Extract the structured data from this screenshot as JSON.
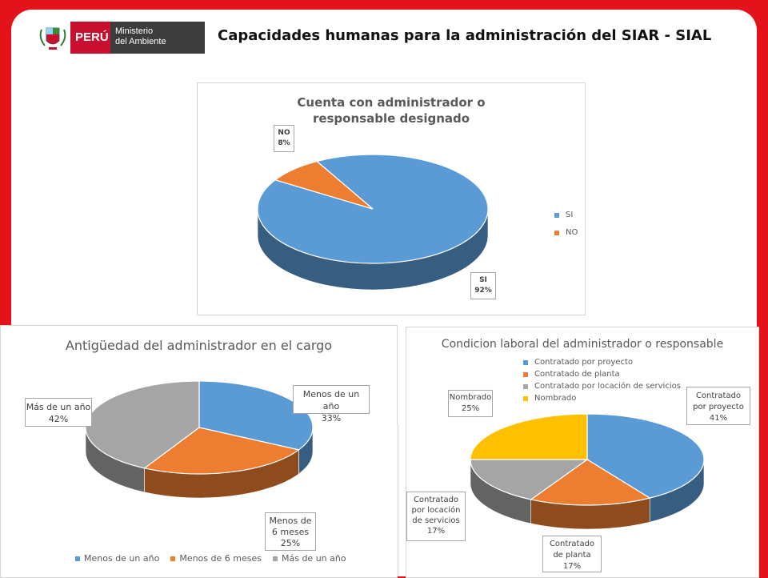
{
  "header": {
    "country": "PERÚ",
    "ministry_line1": "Ministerio",
    "ministry_line2": "del Ambiente",
    "title": "Capacidades humanas para la administración del SIAR - SIAL"
  },
  "colors": {
    "frame_red": "#e4121b",
    "blue": "#5b9bd5",
    "orange": "#ed7d31",
    "gray": "#a5a5a5",
    "yellow": "#ffc000"
  },
  "chart_data": [
    {
      "type": "pie",
      "title": "Cuenta con administrador o responsable designado",
      "categories": [
        "SI",
        "NO"
      ],
      "values": [
        92,
        8
      ],
      "labels": [
        {
          "name": "SI",
          "pct": "92%"
        },
        {
          "name": "NO",
          "pct": "8%"
        }
      ],
      "legend": [
        "SI",
        "NO"
      ],
      "legend_position": "right"
    },
    {
      "type": "pie",
      "title": "Antigüedad del administrador en el cargo",
      "categories": [
        "Menos de un año",
        "Menos de 6 meses",
        "Más de un año"
      ],
      "values": [
        33,
        25,
        42
      ],
      "labels": [
        {
          "name": "Menos de un año",
          "pct": "33%"
        },
        {
          "name": "Menos de 6 meses",
          "pct": "25%"
        },
        {
          "name": "Más de un año",
          "pct": "42%"
        }
      ],
      "legend": [
        "Menos de un año",
        "Menos de 6 meses",
        "Más de un año"
      ],
      "legend_position": "bottom"
    },
    {
      "type": "pie",
      "title": "Condicion laboral del administrador o responsable",
      "categories": [
        "Contratado por proyecto",
        "Contratado de planta",
        "Contratado por locación de servicios",
        "Nombrado"
      ],
      "values": [
        41,
        17,
        17,
        25
      ],
      "labels": [
        {
          "name": "Contratado por proyecto",
          "pct": "41%"
        },
        {
          "name": "Contratado de planta",
          "pct": "17%"
        },
        {
          "name": "Contratado por locación de servicios",
          "pct": "17%"
        },
        {
          "name": "Nombrado",
          "pct": "25%"
        }
      ],
      "legend": [
        "Contratado por proyecto",
        "Contratado de planta",
        "Contratado por locación de servicios",
        "Nombrado"
      ],
      "legend_position": "top"
    }
  ]
}
